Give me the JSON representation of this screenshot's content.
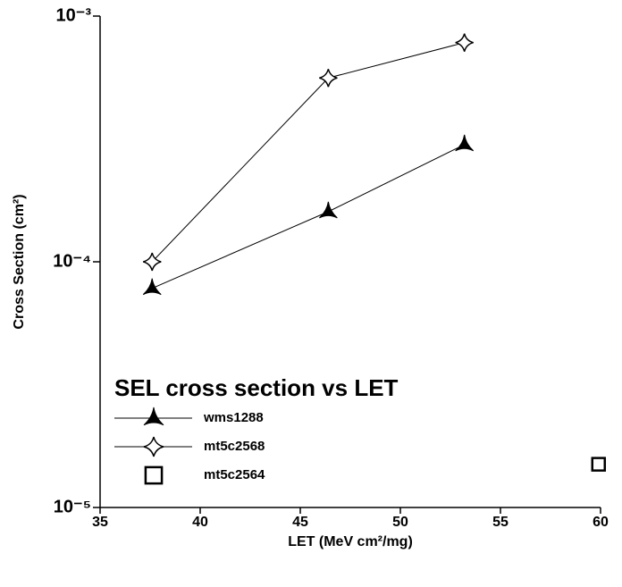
{
  "chart_data": {
    "type": "scatter",
    "legend_title": "SEL cross section vs LET",
    "x_label": "LET (MeV cm²/mg)",
    "y_label": "Cross Section (cm²)",
    "xlim": [
      35,
      60
    ],
    "xticks": [
      35,
      40,
      45,
      50,
      55,
      60
    ],
    "ylim": [
      1e-05,
      0.001
    ],
    "log_y": true,
    "yticks": [
      {
        "value": 1e-05,
        "label": "10⁻⁵"
      },
      {
        "value": 0.0001,
        "label": "10⁻⁴"
      },
      {
        "value": 0.001,
        "label": "10⁻³"
      }
    ],
    "legend": "lower left",
    "series": [
      {
        "name": "wms1288",
        "color": "#000000",
        "marker": "tri-star",
        "x": [
          37.6,
          46.4,
          53.2
        ],
        "values": [
          7.8e-05,
          0.00016,
          0.0003
        ]
      },
      {
        "name": "mt5c2568",
        "color": "#000000",
        "marker": "four-star",
        "x": [
          37.6,
          46.4,
          53.2
        ],
        "values": [
          0.0001,
          0.00056,
          0.00078
        ]
      },
      {
        "name": "mt5c2564",
        "color": "#000000",
        "marker": "square",
        "x": [
          59.9
        ],
        "values": [
          1.5e-05
        ]
      }
    ]
  }
}
